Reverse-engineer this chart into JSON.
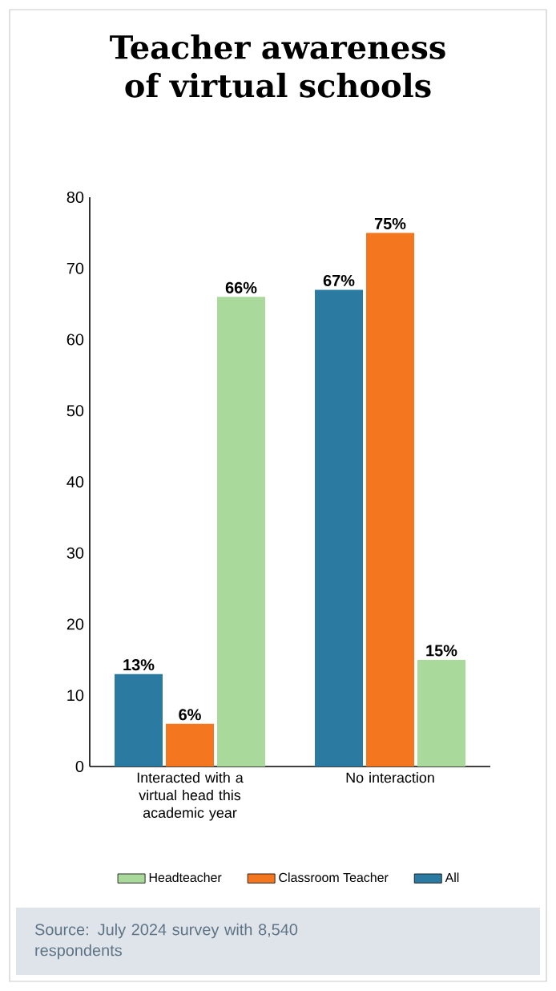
{
  "chart_data": {
    "type": "bar",
    "title": "Teacher awareness of virtual schools",
    "categories": [
      "Interacted with a virtual head this academic year",
      "No interaction"
    ],
    "series": [
      {
        "name": "All",
        "color": "#2b7aa1",
        "values": [
          13,
          67
        ],
        "value_labels": [
          "13%",
          "67%"
        ]
      },
      {
        "name": "Classroom Teacher",
        "color": "#f4761f",
        "values": [
          6,
          75
        ],
        "value_labels": [
          "6%",
          "75%"
        ]
      },
      {
        "name": "Headteacher",
        "color": "#a9d99b",
        "values": [
          66,
          15
        ],
        "value_labels": [
          "66%",
          "15%"
        ]
      }
    ],
    "ylim": [
      0,
      80
    ],
    "yticks": [
      0,
      10,
      20,
      30,
      40,
      50,
      60,
      70,
      80
    ],
    "grid": false,
    "legend": "bottom",
    "annotations": [
      "Source: July 2024 survey with 8,540 respondents"
    ]
  }
}
